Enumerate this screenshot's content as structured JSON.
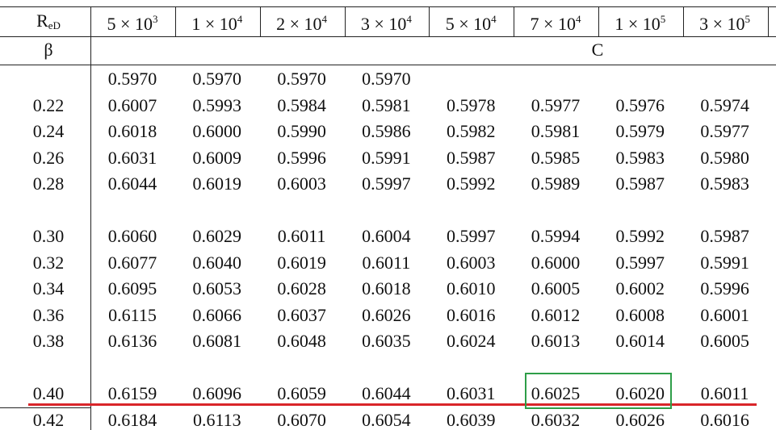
{
  "table": {
    "corner": {
      "main": "R",
      "sub": "eD"
    },
    "columns": [
      {
        "base": "5 × 10",
        "exp": "3"
      },
      {
        "base": "1 × 10",
        "exp": "4"
      },
      {
        "base": "2 × 10",
        "exp": "4"
      },
      {
        "base": "3 × 10",
        "exp": "4"
      },
      {
        "base": "5 × 10",
        "exp": "4"
      },
      {
        "base": "7 × 10",
        "exp": "4"
      },
      {
        "base": "1 × 10",
        "exp": "5"
      },
      {
        "base": "3 × 10",
        "exp": "5"
      }
    ],
    "beta_label": "β",
    "value_label": "C",
    "rows": [
      {
        "beta": null,
        "values": [
          "0.5970",
          "0.5970",
          "0.5970",
          "0.5970"
        ]
      },
      {
        "beta": "0.22",
        "values": [
          "0.6007",
          "0.5993",
          "0.5984",
          "0.5981",
          "0.5978",
          "0.5977",
          "0.5976",
          "0.5974"
        ]
      },
      {
        "beta": "0.24",
        "values": [
          "0.6018",
          "0.6000",
          "0.5990",
          "0.5986",
          "0.5982",
          "0.5981",
          "0.5979",
          "0.5977"
        ]
      },
      {
        "beta": "0.26",
        "values": [
          "0.6031",
          "0.6009",
          "0.5996",
          "0.5991",
          "0.5987",
          "0.5985",
          "0.5983",
          "0.5980"
        ]
      },
      {
        "beta": "0.28",
        "values": [
          "0.6044",
          "0.6019",
          "0.6003",
          "0.5997",
          "0.5992",
          "0.5989",
          "0.5987",
          "0.5983"
        ]
      },
      {
        "beta": "0.30",
        "values": [
          "0.6060",
          "0.6029",
          "0.6011",
          "0.6004",
          "0.5997",
          "0.5994",
          "0.5992",
          "0.5987"
        ]
      },
      {
        "beta": "0.32",
        "values": [
          "0.6077",
          "0.6040",
          "0.6019",
          "0.6011",
          "0.6003",
          "0.6000",
          "0.5997",
          "0.5991"
        ]
      },
      {
        "beta": "0.34",
        "values": [
          "0.6095",
          "0.6053",
          "0.6028",
          "0.6018",
          "0.6010",
          "0.6005",
          "0.6002",
          "0.5996"
        ]
      },
      {
        "beta": "0.36",
        "values": [
          "0.6115",
          "0.6066",
          "0.6037",
          "0.6026",
          "0.6016",
          "0.6012",
          "0.6008",
          "0.6001"
        ]
      },
      {
        "beta": "0.38",
        "values": [
          "0.6136",
          "0.6081",
          "0.6048",
          "0.6035",
          "0.6024",
          "0.6013",
          "0.6014",
          "0.6005"
        ]
      },
      {
        "beta": "0.40",
        "values": [
          "0.6159",
          "0.6096",
          "0.6059",
          "0.6044",
          "0.6031",
          "0.6025",
          "0.6020",
          "0.6011"
        ]
      },
      {
        "beta": "0.42",
        "values": [
          "0.6184",
          "0.6113",
          "0.6070",
          "0.6054",
          "0.6039",
          "0.6032",
          "0.6026",
          "0.6016"
        ]
      }
    ]
  }
}
